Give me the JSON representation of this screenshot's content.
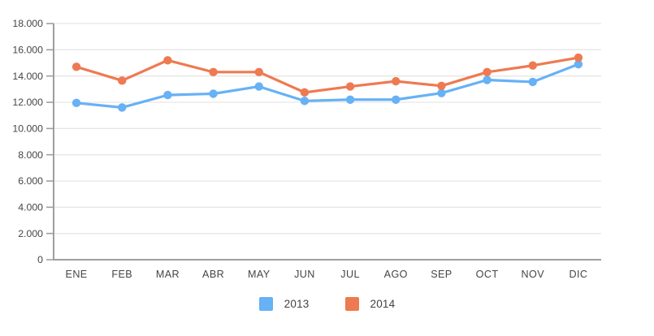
{
  "chart_data": {
    "type": "line",
    "categories": [
      "ENE",
      "FEB",
      "MAR",
      "ABR",
      "MAY",
      "JUN",
      "JUL",
      "AGO",
      "SEP",
      "OCT",
      "NOV",
      "DIC"
    ],
    "series": [
      {
        "name": "2013",
        "color": "#67b1f5",
        "values": [
          11950,
          11600,
          12550,
          12650,
          13200,
          12100,
          12200,
          12200,
          12700,
          13700,
          13550,
          14900
        ]
      },
      {
        "name": "2014",
        "color": "#ee7a52",
        "values": [
          14700,
          13650,
          15200,
          14300,
          14300,
          12750,
          13200,
          13600,
          13250,
          14300,
          14800,
          15400
        ]
      }
    ],
    "ylim": [
      0,
      18000
    ],
    "y_tick_step": 2000,
    "y_tick_labels": [
      "0",
      "2.000",
      "4.000",
      "6.000",
      "8.000",
      "10.000",
      "12.000",
      "14.000",
      "16.000",
      "18.000"
    ],
    "grid": true,
    "legend_position": "bottom"
  },
  "legend": {
    "items": [
      {
        "label": "2013",
        "color": "#67b1f5"
      },
      {
        "label": "2014",
        "color": "#ee7a52"
      }
    ]
  },
  "style": {
    "grid_color": "#e6e6e6",
    "axis_color": "#9e9e9e",
    "label_color": "#45454a",
    "background": "#ffffff"
  }
}
